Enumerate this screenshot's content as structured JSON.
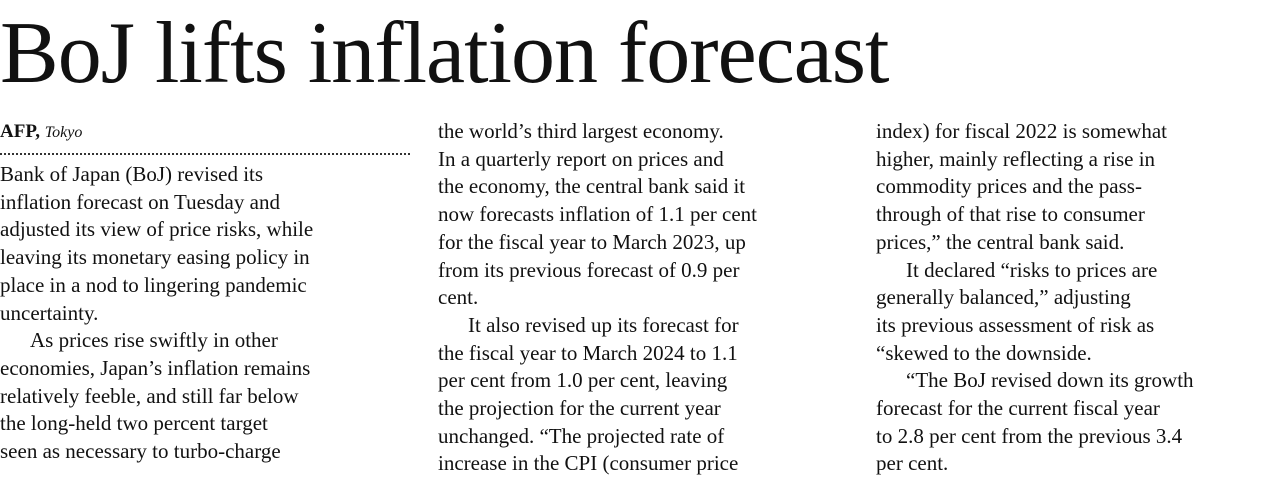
{
  "headline": "BoJ lifts inflation forecast",
  "byline": {
    "agency": "AFP,",
    "place": "Tokyo"
  },
  "columns": [
    [
      {
        "text": "Bank of Japan (BoJ) revised its",
        "indent": false
      },
      {
        "text": "inflation forecast on Tuesday and",
        "indent": false
      },
      {
        "text": "adjusted its view of price risks, while",
        "indent": false
      },
      {
        "text": "leaving its monetary easing policy in",
        "indent": false
      },
      {
        "text": "place in a nod to lingering pandemic",
        "indent": false
      },
      {
        "text": "uncertainty.",
        "indent": false
      },
      {
        "text": "As prices rise swiftly in other",
        "indent": true
      },
      {
        "text": "economies, Japan’s inflation remains",
        "indent": false
      },
      {
        "text": "relatively feeble, and still far below",
        "indent": false
      },
      {
        "text": "the long-held two percent target",
        "indent": false
      },
      {
        "text": "seen as necessary to turbo-charge",
        "indent": false
      }
    ],
    [
      {
        "text": "the world’s third largest economy.",
        "indent": false
      },
      {
        "text": "In a quarterly report on prices and",
        "indent": false
      },
      {
        "text": "the economy, the central bank said it",
        "indent": false
      },
      {
        "text": "now forecasts inflation of 1.1 per cent",
        "indent": false
      },
      {
        "text": "for the fiscal year to March 2023, up",
        "indent": false
      },
      {
        "text": "from its previous forecast of 0.9 per",
        "indent": false
      },
      {
        "text": "cent.",
        "indent": false
      },
      {
        "text": "It also revised up its forecast for",
        "indent": true
      },
      {
        "text": "the fiscal year to March 2024 to 1.1",
        "indent": false
      },
      {
        "text": "per cent from 1.0 per cent, leaving",
        "indent": false
      },
      {
        "text": "the projection for the current year",
        "indent": false
      },
      {
        "text": "unchanged.  “The projected rate of",
        "indent": false
      },
      {
        "text": "increase in the CPI (consumer price",
        "indent": false
      }
    ],
    [
      {
        "text": "index) for fiscal 2022 is somewhat",
        "indent": false
      },
      {
        "text": "higher, mainly reflecting a rise in",
        "indent": false
      },
      {
        "text": "commodity prices and the pass-",
        "indent": false
      },
      {
        "text": "through of that rise to consumer",
        "indent": false
      },
      {
        "text": "prices,” the central bank said.",
        "indent": false
      },
      {
        "text": "It declared  “risks to prices are",
        "indent": true
      },
      {
        "text": "generally balanced,” adjusting",
        "indent": false
      },
      {
        "text": "its previous assessment of risk as",
        "indent": false
      },
      {
        "text": "“skewed to the downside.",
        "indent": false
      },
      {
        "text": "“The BoJ revised down its growth",
        "indent": true
      },
      {
        "text": "forecast for the current fiscal year",
        "indent": false
      },
      {
        "text": "to 2.8 per cent from the previous 3.4",
        "indent": false
      },
      {
        "text": "per cent.",
        "indent": false
      }
    ]
  ]
}
